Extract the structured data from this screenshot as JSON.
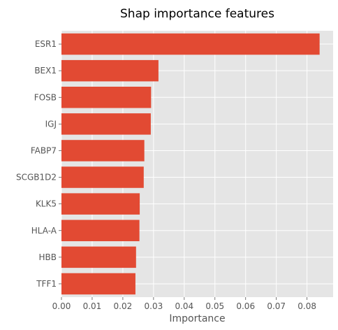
{
  "chart_data": {
    "type": "bar",
    "orientation": "horizontal",
    "title": "Shap importance features",
    "xlabel": "Importance",
    "ylabel": "",
    "categories": [
      "ESR1",
      "BEX1",
      "FOSB",
      "IGJ",
      "FABP7",
      "SCGB1D2",
      "KLK5",
      "HLA-A",
      "HBB",
      "TFF1"
    ],
    "values": [
      0.0841,
      0.0316,
      0.0292,
      0.0291,
      0.027,
      0.0268,
      0.0255,
      0.0254,
      0.0243,
      0.0241
    ],
    "xlim": [
      0,
      0.0885
    ],
    "xticks": [
      "0.00",
      "0.01",
      "0.02",
      "0.03",
      "0.04",
      "0.05",
      "0.06",
      "0.07",
      "0.08"
    ],
    "grid": true,
    "style": "ggplot",
    "colors": {
      "bar": "#E24A33",
      "background": "#E5E5E5",
      "grid": "#FFFFFF",
      "text": "#555555"
    }
  }
}
